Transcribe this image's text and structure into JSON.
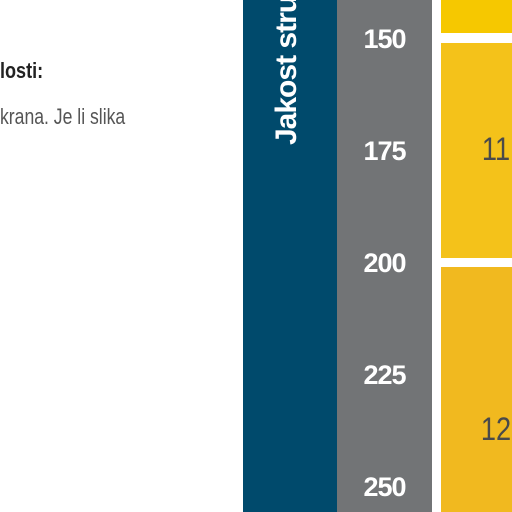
{
  "text": {
    "heading": "losti:",
    "body": "krana. Je li slika"
  },
  "axis": {
    "label": "Jakost stru",
    "ticks": [
      "150",
      "175",
      "200",
      "225",
      "250"
    ]
  },
  "cells": [
    {
      "value": "",
      "color": "#f6c800"
    },
    {
      "value": "11",
      "color": "#f4c21a"
    },
    {
      "value": "12",
      "color": "#f1b91f"
    }
  ]
}
